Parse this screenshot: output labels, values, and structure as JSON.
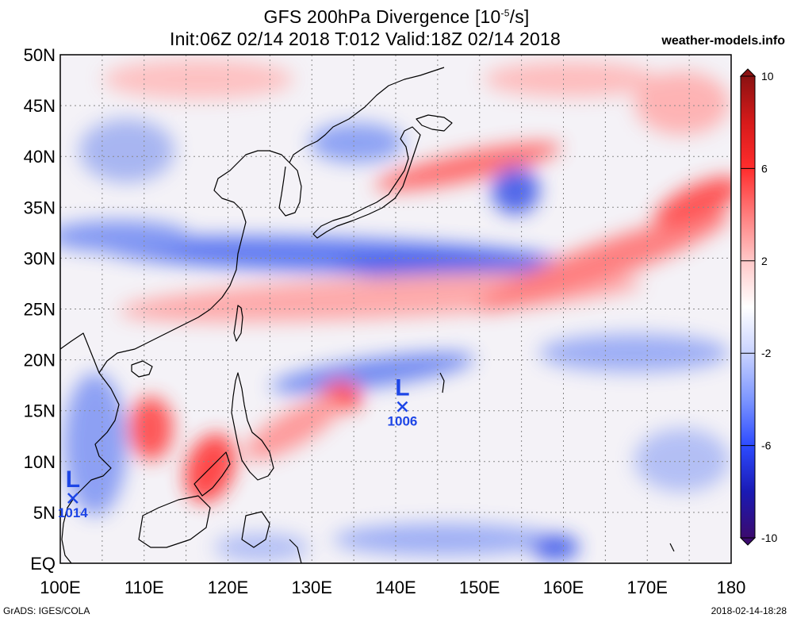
{
  "header": {
    "title_main": "GFS 200hPa Divergence [10",
    "title_exp": "-5",
    "title_unit": "/s]",
    "subtitle": "Init:06Z 02/14 2018 T:012 Valid:18Z 02/14 2018",
    "site": "weather-models.info"
  },
  "footer": {
    "credit": "GrADS: IGES/COLA",
    "timestamp": "2018-02-14-18:28"
  },
  "map": {
    "lon_labels": [
      "100E",
      "110E",
      "120E",
      "130E",
      "140E",
      "150E",
      "160E",
      "170E",
      "180"
    ],
    "lat_labels": [
      "EQ",
      "5N",
      "10N",
      "15N",
      "20N",
      "25N",
      "30N",
      "35N",
      "40N",
      "45N",
      "50N"
    ],
    "lows": [
      {
        "letter": "L",
        "pressure": "1006",
        "lon": 140.8,
        "lat": 15.4
      },
      {
        "letter": "L",
        "pressure": "1014",
        "lon": 101.5,
        "lat": 6.4
      }
    ],
    "low_color": "#1e46e6"
  },
  "colorbar": {
    "labels": [
      "10",
      "6",
      "2",
      "-2",
      "-6",
      "-10"
    ],
    "values": [
      10,
      6,
      2,
      -2,
      -6,
      -10
    ],
    "min": -10,
    "max": 10,
    "colors": [
      "#3b0a6e",
      "#1a1ab4",
      "#2d4bff",
      "#7d96ff",
      "#c8d2ff",
      "#ffffff",
      "#ffc8c8",
      "#ff7d7d",
      "#ff2d2d",
      "#d61a1a",
      "#8b1212"
    ]
  }
}
